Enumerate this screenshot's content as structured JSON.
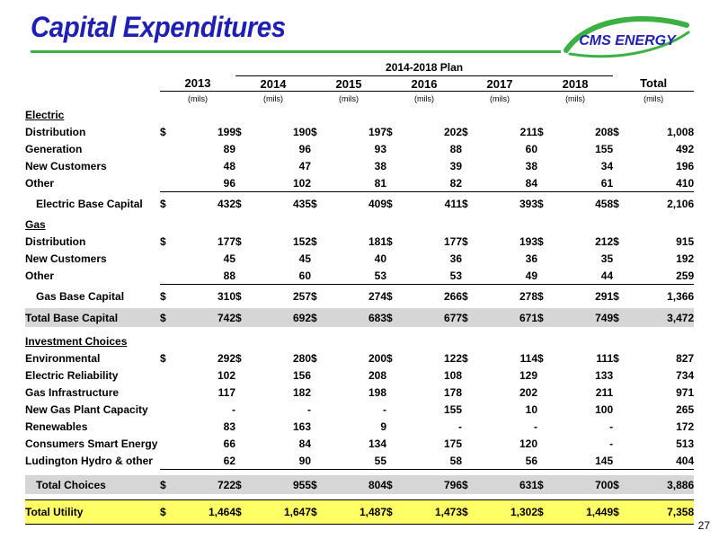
{
  "title": "Capital Expenditures",
  "logo_text": "CMS ENERGY",
  "page_number": "27",
  "header": {
    "plan_label": "2014-2018 Plan",
    "years": [
      "2013",
      "2014",
      "2015",
      "2016",
      "2017",
      "2018",
      "Total"
    ],
    "unit": "(mils)"
  },
  "sections": {
    "electric": "Electric",
    "gas": "Gas",
    "investment": "Investment Choices"
  },
  "rows": {
    "elec_dist": {
      "label": "Distribution",
      "cur": "$",
      "values": [
        "199",
        "190",
        "197",
        "202",
        "211",
        "208",
        "1,008"
      ]
    },
    "elec_gen": {
      "label": "Generation",
      "cur": "",
      "values": [
        "89",
        "96",
        "93",
        "88",
        "60",
        "155",
        "492"
      ]
    },
    "elec_newcust": {
      "label": "New Customers",
      "cur": "",
      "values": [
        "48",
        "47",
        "38",
        "39",
        "38",
        "34",
        "196"
      ]
    },
    "elec_other": {
      "label": "Other",
      "cur": "",
      "values": [
        "96",
        "102",
        "81",
        "82",
        "84",
        "61",
        "410"
      ]
    },
    "elec_base": {
      "label": "Electric Base Capital",
      "cur": "$",
      "values": [
        "432",
        "435",
        "409",
        "411",
        "393",
        "458",
        "2,106"
      ]
    },
    "gas_dist": {
      "label": "Distribution",
      "cur": "$",
      "values": [
        "177",
        "152",
        "181",
        "177",
        "193",
        "212",
        "915"
      ]
    },
    "gas_newcust": {
      "label": "New Customers",
      "cur": "",
      "values": [
        "45",
        "45",
        "40",
        "36",
        "36",
        "35",
        "192"
      ]
    },
    "gas_other": {
      "label": "Other",
      "cur": "",
      "values": [
        "88",
        "60",
        "53",
        "53",
        "49",
        "44",
        "259"
      ]
    },
    "gas_base": {
      "label": "Gas Base Capital",
      "cur": "$",
      "values": [
        "310",
        "257",
        "274",
        "266",
        "278",
        "291",
        "1,366"
      ]
    },
    "total_base": {
      "label": "Total Base Capital",
      "cur": "$",
      "values": [
        "742",
        "692",
        "683",
        "677",
        "671",
        "749",
        "3,472"
      ]
    },
    "env": {
      "label": "Environmental",
      "cur": "$",
      "values": [
        "292",
        "280",
        "200",
        "122",
        "114",
        "111",
        "827"
      ]
    },
    "elec_rel": {
      "label": "Electric Reliability",
      "cur": "",
      "values": [
        "102",
        "156",
        "208",
        "108",
        "129",
        "133",
        "734"
      ]
    },
    "gas_infra": {
      "label": "Gas Infrastructure",
      "cur": "",
      "values": [
        "117",
        "182",
        "198",
        "178",
        "202",
        "211",
        "971"
      ]
    },
    "new_gas": {
      "label": "New Gas Plant Capacity",
      "cur": "",
      "values": [
        "-",
        "-",
        "-",
        "155",
        "10",
        "100",
        "265"
      ]
    },
    "renew": {
      "label": "Renewables",
      "cur": "",
      "values": [
        "83",
        "163",
        "9",
        "-",
        "-",
        "-",
        "172"
      ]
    },
    "smart": {
      "label": "Consumers Smart Energy",
      "cur": "",
      "values": [
        "66",
        "84",
        "134",
        "175",
        "120",
        "-",
        "513"
      ]
    },
    "ludington": {
      "label": "Ludington Hydro & other",
      "cur": "",
      "values": [
        "62",
        "90",
        "55",
        "58",
        "56",
        "145",
        "404"
      ]
    },
    "total_choices": {
      "label": "Total Choices",
      "cur": "$",
      "values": [
        "722",
        "955",
        "804",
        "796",
        "631",
        "700",
        "3,886"
      ]
    },
    "total_utility": {
      "label": "Total Utility",
      "cur": "$",
      "values": [
        "1,464",
        "1,647",
        "1,487",
        "1,473",
        "1,302",
        "1,449",
        "7,358"
      ]
    }
  },
  "colors": {
    "title": "#1f1fb3",
    "title_rule": "#3cb043",
    "logo_blue": "#1f1fb3",
    "logo_green": "#3cb043",
    "highlight_gray": "#d6d6d6",
    "highlight_yellow": "#ffff66"
  }
}
